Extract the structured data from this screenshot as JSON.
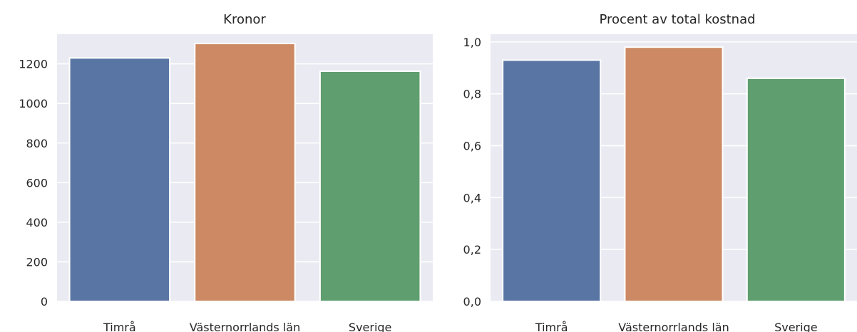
{
  "chart_data": [
    {
      "type": "bar",
      "title": "Kronor",
      "xlabel": "",
      "ylabel": "",
      "categories": [
        "Timrå",
        "Västernorrlands län",
        "Sverige"
      ],
      "values": [
        1230,
        1303,
        1163
      ],
      "ylim": [
        0,
        1350
      ],
      "yticks": [
        0,
        200,
        400,
        600,
        800,
        1000,
        1200
      ],
      "ytick_labels": [
        "0",
        "200",
        "400",
        "600",
        "800",
        "1000",
        "1200"
      ],
      "colors": [
        "#5975a4",
        "#cc8963",
        "#5f9e6e"
      ],
      "grid": true
    },
    {
      "type": "bar",
      "title": "Procent av total kostnad",
      "xlabel": "",
      "ylabel": "",
      "categories": [
        "Timrå",
        "Västernorrlands län",
        "Sverige"
      ],
      "values": [
        0.93,
        0.98,
        0.86
      ],
      "ylim": [
        0,
        1.03
      ],
      "yticks": [
        0,
        0.2,
        0.4,
        0.6,
        0.8,
        1.0
      ],
      "ytick_labels": [
        "0,0",
        "0,2",
        "0,4",
        "0,6",
        "0,8",
        "1,0"
      ],
      "colors": [
        "#5975a4",
        "#cc8963",
        "#5f9e6e"
      ],
      "grid": true
    }
  ],
  "style": {
    "plot_bg": "#eaeaf2",
    "grid_color": "#ffffff"
  }
}
